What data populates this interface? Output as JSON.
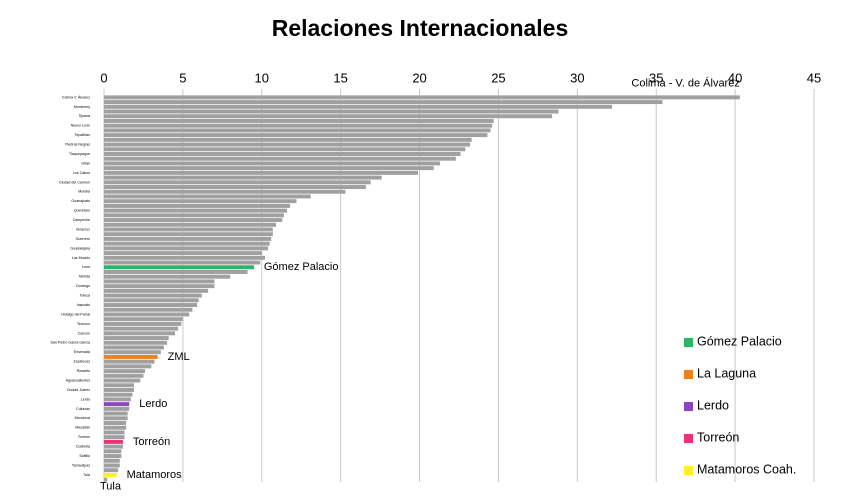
{
  "chart_data": {
    "type": "hbar",
    "title": "Relaciones Internacionales",
    "color": "#a0a0a0",
    "xlim": [
      0,
      45
    ],
    "xticks": [
      0,
      5,
      10,
      15,
      20,
      25,
      30,
      35,
      40,
      45
    ],
    "grid": true,
    "categories": [
      "Colima V. Álvarez",
      null,
      "Monterrey",
      null,
      "Tijuana",
      null,
      "Nuevo León",
      null,
      "Tepatitlán",
      null,
      "Piedras Negras",
      null,
      "Tlaquepaque",
      null,
      "Ixtlán",
      null,
      "Los Cabos",
      null,
      "Ciudad del Carmen",
      null,
      "Morelia",
      null,
      "Guanajuato",
      null,
      "Querétaro",
      null,
      "Campeche",
      null,
      "Veracruz",
      null,
      "Guerrero",
      null,
      "Guadalajara",
      null,
      "Los Mochis",
      null,
      "León",
      null,
      "Mérida",
      null,
      "Durango",
      null,
      "Toluca",
      null,
      "Irapuato",
      null,
      "Hidalgo del Parral",
      null,
      "Texcoco",
      null,
      "Cancún",
      null,
      "San Pedro Garza García",
      null,
      "Ensenada",
      null,
      "Zacatecas",
      null,
      "Rosarito",
      null,
      "Aguascalientes",
      null,
      "Ciudad Juárez",
      null,
      "Lerdo",
      null,
      "Culiacán",
      null,
      "Monclova",
      null,
      "Mazatlán",
      null,
      "Torreón",
      null,
      "Coahuila",
      null,
      "Saltillo",
      null,
      "Tamaulipas",
      null,
      "Tula",
      null
    ],
    "values": [
      40.3,
      35.4,
      32.2,
      28.8,
      28.4,
      24.7,
      24.6,
      24.5,
      24.3,
      23.3,
      23.2,
      22.9,
      22.6,
      22.3,
      21.3,
      20.9,
      19.9,
      17.6,
      16.9,
      16.6,
      15.3,
      13.1,
      12.2,
      11.8,
      11.6,
      11.4,
      11.3,
      10.9,
      10.7,
      10.7,
      10.6,
      10.5,
      10.4,
      10.0,
      10.2,
      9.9,
      9.5,
      9.1,
      8.0,
      7.0,
      7.0,
      6.6,
      6.2,
      6.0,
      5.9,
      5.6,
      5.4,
      5.0,
      4.9,
      4.7,
      4.5,
      4.1,
      4.0,
      3.8,
      3.6,
      3.4,
      3.2,
      3.0,
      2.6,
      2.5,
      2.3,
      1.9,
      1.9,
      1.8,
      1.7,
      1.6,
      1.6,
      1.5,
      1.5,
      1.4,
      1.4,
      1.3,
      1.3,
      1.2,
      1.2,
      1.1,
      1.1,
      1.0,
      1.0,
      0.9,
      0.8,
      0.2
    ],
    "annotations": [
      {
        "text": "Colima - V. de Álvarez",
        "index": 0
      },
      {
        "text": "Gómez Palacio",
        "index": 36,
        "color": "#2db567"
      },
      {
        "text": "ZML",
        "index": 55,
        "color": "#f07f20"
      },
      {
        "text": "Lerdo",
        "index": 65,
        "color": "#8e44c0"
      },
      {
        "text": "Torreón",
        "index": 73,
        "color": "#ee2f7a"
      },
      {
        "text": "Matamoros",
        "index": 80,
        "color": "#ffee22"
      },
      {
        "text": "Tula",
        "index": 81
      }
    ],
    "legend": [
      {
        "name": "Gómez Palacio",
        "color": "#2db567"
      },
      {
        "name": "La Laguna",
        "color": "#f07f20"
      },
      {
        "name": "Lerdo",
        "color": "#8e44c0"
      },
      {
        "name": "Torreón",
        "color": "#ee2f7a"
      },
      {
        "name": "Matamoros Coah.",
        "color": "#ffee22"
      }
    ]
  }
}
